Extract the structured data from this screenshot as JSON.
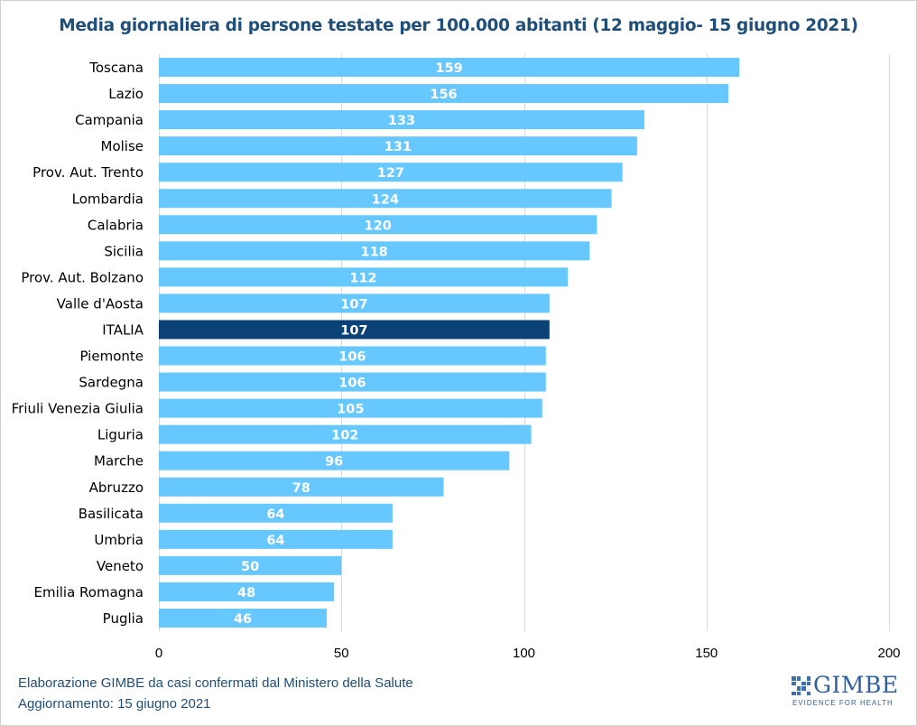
{
  "chart_data": {
    "type": "bar",
    "orientation": "horizontal",
    "title": "Media giornaliera di persone testate per 100.000 abitanti (12 maggio- 15 giugno 2021)",
    "categories": [
      "Toscana",
      "Lazio",
      "Campania",
      "Molise",
      "Prov. Aut. Trento",
      "Lombardia",
      "Calabria",
      "Sicilia",
      "Prov. Aut. Bolzano",
      "Valle d'Aosta",
      "ITALIA",
      "Piemonte",
      "Sardegna",
      "Friuli Venezia Giulia",
      "Liguria",
      "Marche",
      "Abruzzo",
      "Basilicata",
      "Umbria",
      "Veneto",
      "Emilia Romagna",
      "Puglia"
    ],
    "values": [
      159,
      156,
      133,
      131,
      127,
      124,
      120,
      118,
      112,
      107,
      107,
      106,
      106,
      105,
      102,
      96,
      78,
      64,
      64,
      50,
      48,
      46
    ],
    "highlight": "ITALIA",
    "xlim": [
      0,
      200
    ],
    "xticks": [
      0,
      50,
      100,
      150,
      200
    ],
    "grid": true,
    "colors": {
      "bar": "#66c8ff",
      "highlight": "#0a4278",
      "label": "#ffffff",
      "grid": "#d9d9d9",
      "axis_text": "#000000"
    }
  },
  "footer": {
    "line1": "Elaborazione GIMBE da casi confermati dal Ministero della Salute",
    "line2": "Aggiornamento:  15 giugno 2021"
  },
  "logo": {
    "name": "GIMBE",
    "tagline": "EVIDENCE FOR HEALTH"
  }
}
